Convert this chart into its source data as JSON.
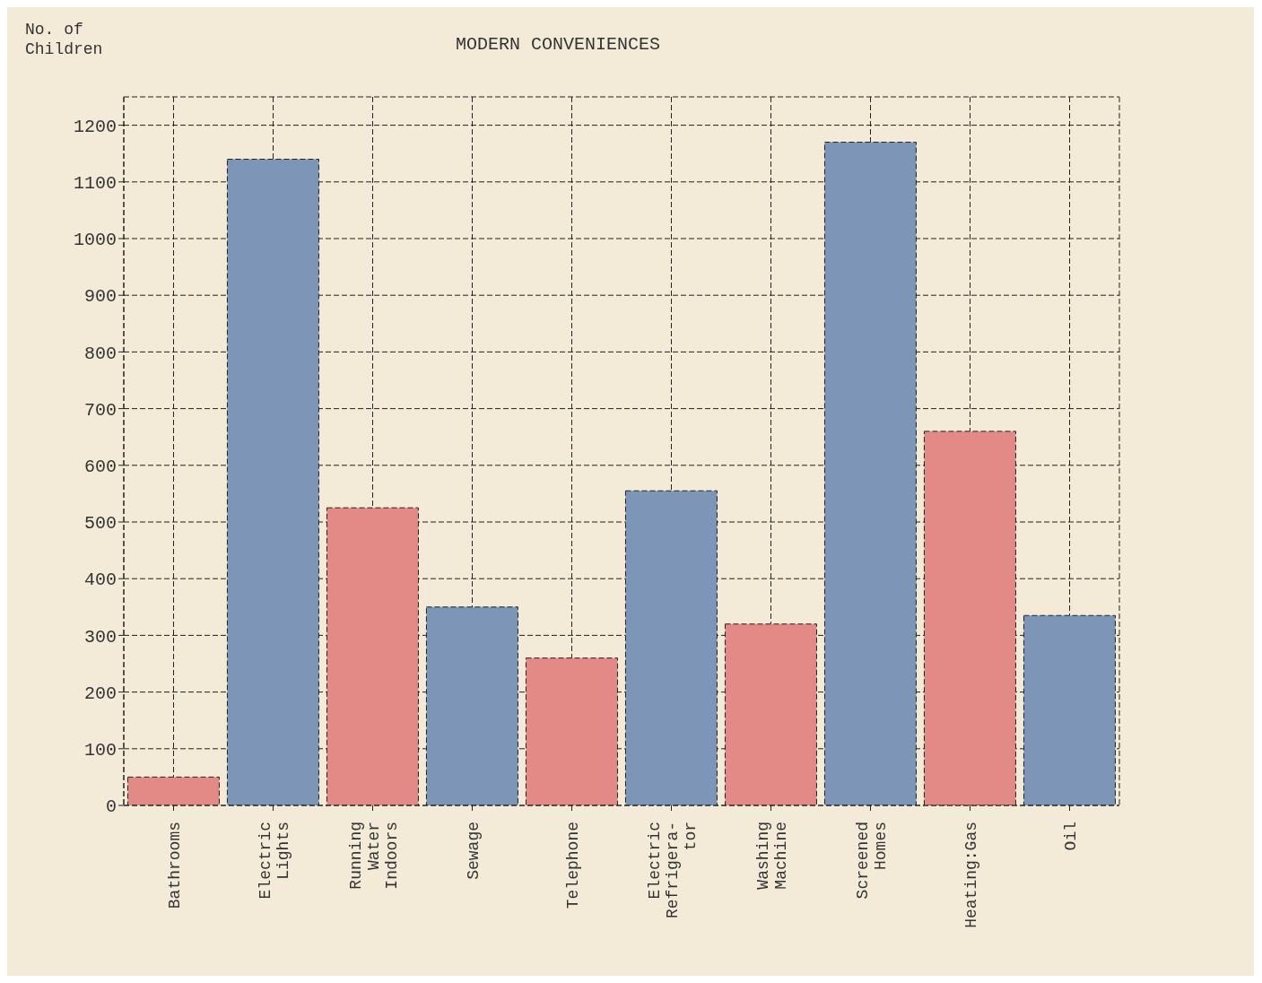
{
  "chart_data": {
    "type": "bar",
    "title": "MODERN CONVENIENCES",
    "ylabel": "No. of Children",
    "categories": [
      "Bathrooms",
      "Electric\nLights",
      "Running\nWater\nIndoors",
      "Sewage",
      "Telephone",
      "Electric\nRefrigera-\ntor",
      "Washing\nMachine",
      "Screened\nHomes",
      "Heating:Gas",
      "Oil"
    ],
    "values": [
      50,
      1140,
      525,
      350,
      260,
      555,
      320,
      1170,
      660,
      335
    ],
    "colors": [
      "#e38a86",
      "#7d96b8",
      "#e38a86",
      "#7d96b8",
      "#e38a86",
      "#7d96b8",
      "#e38a86",
      "#7d96b8",
      "#e38a86",
      "#7d96b8"
    ],
    "ylim": [
      0,
      1250
    ],
    "yticks": [
      0,
      100,
      200,
      300,
      400,
      500,
      600,
      700,
      800,
      900,
      1000,
      1100,
      1200
    ],
    "grid": true
  }
}
